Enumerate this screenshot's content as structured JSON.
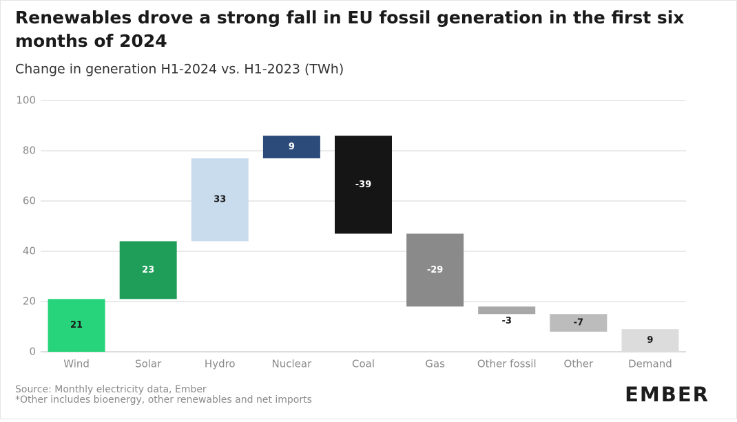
{
  "chart_data": {
    "type": "waterfall",
    "title": "Renewables drove a strong fall in EU fossil generation in the first six months of 2024",
    "subtitle": "Change in generation H1-2024 vs. H1-2023 (TWh)",
    "categories": [
      "Wind",
      "Solar",
      "Hydro",
      "Nuclear",
      "Coal",
      "Gas",
      "Other fossil",
      "Other",
      "Demand"
    ],
    "values": [
      21,
      23,
      33,
      9,
      -39,
      -29,
      -3,
      -7,
      9
    ],
    "colors": [
      "#27d47c",
      "#1f9e5a",
      "#c9dcee",
      "#2c4a7a",
      "#151515",
      "#8a8a8a",
      "#a8a8a8",
      "#bcbcbc",
      "#dcdcdc"
    ],
    "ylim": [
      0,
      100
    ],
    "yticks": [
      0,
      20,
      40,
      60,
      80,
      100
    ],
    "grid": true,
    "source": "Source: Monthly electricity data, Ember",
    "note": "*Other includes bioenergy, other renewables and net imports",
    "logo": "EMBER"
  }
}
